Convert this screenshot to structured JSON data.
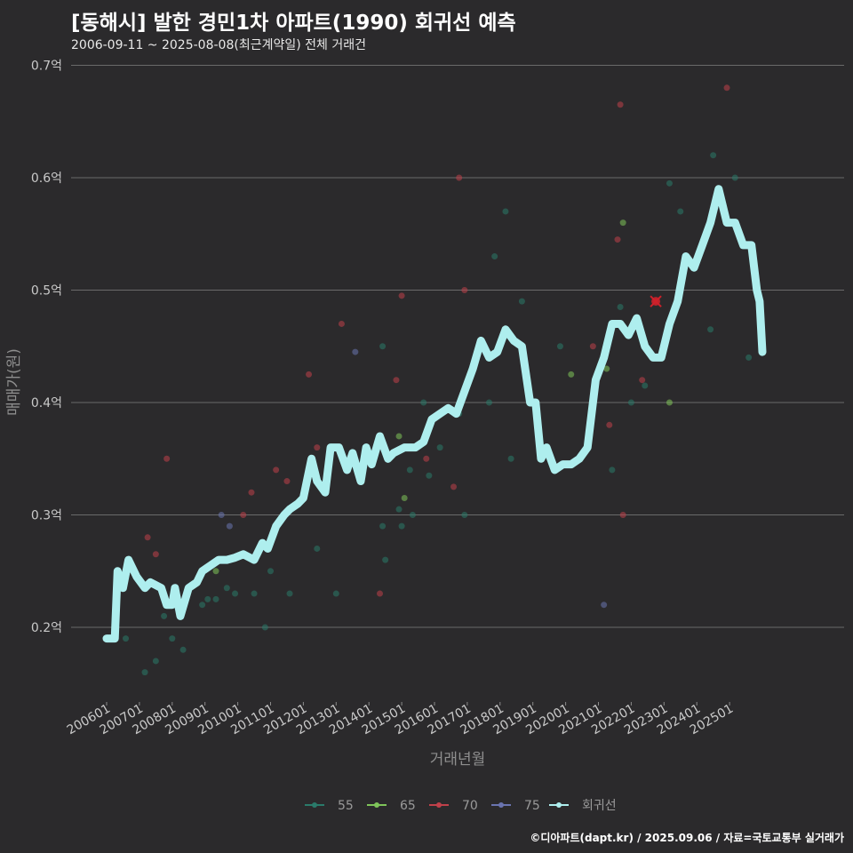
{
  "title": "[동해시] 발한 경민1차 아파트(1990) 회귀선 예측",
  "subtitle": "2006-09-11 ~ 2025-08-08(최근계약일) 전체 거래건",
  "caption": "©디아파트(dapt.kr) / 2025.09.06 / 자료=국토교통부 실거래가",
  "colors": {
    "background": "#2b2a2c",
    "grid": "#6a6a6a",
    "s55": "#2a7a6a",
    "s65": "#7fc45a",
    "s70": "#c0404a",
    "s75": "#6a74b0",
    "trend": "#aeeeee",
    "highlight": "#d0202a"
  },
  "chart_data": {
    "type": "scatter",
    "xlabel": "거래년월",
    "ylabel": "매매가(원)",
    "x_start": "2006-01",
    "x_end": "2025-12",
    "ylim": [
      0.135,
      0.71
    ],
    "y_ticks": [
      {
        "value": 0.2,
        "label": "0.2억"
      },
      {
        "value": 0.3,
        "label": "0.3억"
      },
      {
        "value": 0.4,
        "label": "0.4억"
      },
      {
        "value": 0.5,
        "label": "0.5억"
      },
      {
        "value": 0.6,
        "label": "0.6억"
      },
      {
        "value": 0.7,
        "label": "0.7억"
      }
    ],
    "x_ticks": [
      "200601",
      "200701",
      "200801",
      "200901",
      "201001",
      "201101",
      "201201",
      "201301",
      "201401",
      "201501",
      "201601",
      "201701",
      "201801",
      "201901",
      "202001",
      "202101",
      "202201",
      "202301",
      "202401",
      "202501"
    ],
    "legend": [
      {
        "name": "55",
        "color": "#2a7a6a"
      },
      {
        "name": "65",
        "color": "#7fc45a"
      },
      {
        "name": "70",
        "color": "#c0404a"
      },
      {
        "name": "75",
        "color": "#6a74b0"
      },
      {
        "name": "회귀선",
        "color": "#aeeeee"
      }
    ],
    "legend_position": "bottom",
    "grid": true,
    "series": [
      {
        "name": "55",
        "points": [
          [
            "2006-08",
            0.19
          ],
          [
            "2007-03",
            0.16
          ],
          [
            "2007-07",
            0.17
          ],
          [
            "2007-10",
            0.21
          ],
          [
            "2008-01",
            0.19
          ],
          [
            "2008-05",
            0.18
          ],
          [
            "2008-12",
            0.22
          ],
          [
            "2009-02",
            0.225
          ],
          [
            "2009-05",
            0.225
          ],
          [
            "2009-09",
            0.235
          ],
          [
            "2009-12",
            0.23
          ],
          [
            "2010-07",
            0.23
          ],
          [
            "2010-11",
            0.2
          ],
          [
            "2011-01",
            0.25
          ],
          [
            "2011-08",
            0.23
          ],
          [
            "2012-06",
            0.27
          ],
          [
            "2013-01",
            0.23
          ],
          [
            "2014-06",
            0.45
          ],
          [
            "2014-07",
            0.26
          ],
          [
            "2014-06",
            0.29
          ],
          [
            "2014-12",
            0.305
          ],
          [
            "2015-01",
            0.29
          ],
          [
            "2015-04",
            0.34
          ],
          [
            "2015-05",
            0.3
          ],
          [
            "2015-09",
            0.4
          ],
          [
            "2015-11",
            0.335
          ],
          [
            "2016-03",
            0.36
          ],
          [
            "2016-10",
            0.39
          ],
          [
            "2016-12",
            0.3
          ],
          [
            "2017-09",
            0.4
          ],
          [
            "2017-11",
            0.53
          ],
          [
            "2018-03",
            0.57
          ],
          [
            "2018-05",
            0.35
          ],
          [
            "2018-09",
            0.49
          ],
          [
            "2019-11",
            0.45
          ],
          [
            "2021-06",
            0.34
          ],
          [
            "2021-09",
            0.485
          ],
          [
            "2022-01",
            0.4
          ],
          [
            "2022-06",
            0.415
          ],
          [
            "2023-03",
            0.595
          ],
          [
            "2023-07",
            0.57
          ],
          [
            "2024-06",
            0.465
          ],
          [
            "2024-07",
            0.62
          ],
          [
            "2025-03",
            0.6
          ],
          [
            "2025-08",
            0.44
          ]
        ]
      },
      {
        "name": "65",
        "points": [
          [
            "2009-05",
            0.25
          ],
          [
            "2014-12",
            0.37
          ],
          [
            "2015-02",
            0.315
          ],
          [
            "2020-03",
            0.425
          ],
          [
            "2021-04",
            0.43
          ],
          [
            "2021-10",
            0.56
          ],
          [
            "2023-03",
            0.4
          ]
        ]
      },
      {
        "name": "70",
        "points": [
          [
            "2007-04",
            0.28
          ],
          [
            "2007-07",
            0.265
          ],
          [
            "2007-11",
            0.35
          ],
          [
            "2010-03",
            0.3
          ],
          [
            "2010-06",
            0.32
          ],
          [
            "2011-03",
            0.34
          ],
          [
            "2011-07",
            0.33
          ],
          [
            "2012-03",
            0.425
          ],
          [
            "2012-06",
            0.36
          ],
          [
            "2013-03",
            0.47
          ],
          [
            "2014-05",
            0.23
          ],
          [
            "2014-11",
            0.42
          ],
          [
            "2015-01",
            0.495
          ],
          [
            "2015-10",
            0.35
          ],
          [
            "2016-08",
            0.325
          ],
          [
            "2016-10",
            0.6
          ],
          [
            "2016-12",
            0.5
          ],
          [
            "2020-11",
            0.45
          ],
          [
            "2021-05",
            0.38
          ],
          [
            "2021-08",
            0.545
          ],
          [
            "2021-09",
            0.665
          ],
          [
            "2022-05",
            0.42
          ],
          [
            "2022-10",
            0.49
          ],
          [
            "2024-12",
            0.68
          ],
          [
            "2021-10",
            0.3
          ]
        ]
      },
      {
        "name": "75",
        "points": [
          [
            "2009-07",
            0.3
          ],
          [
            "2009-10",
            0.29
          ],
          [
            "2013-08",
            0.445
          ],
          [
            "2021-03",
            0.22
          ]
        ]
      }
    ],
    "highlight_point": [
      "2022-10",
      0.49
    ],
    "trend_line": [
      [
        "2006-01",
        0.19
      ],
      [
        "2006-04",
        0.19
      ],
      [
        "2006-05",
        0.25
      ],
      [
        "2006-07",
        0.235
      ],
      [
        "2006-09",
        0.26
      ],
      [
        "2006-12",
        0.245
      ],
      [
        "2007-03",
        0.235
      ],
      [
        "2007-05",
        0.24
      ],
      [
        "2007-09",
        0.235
      ],
      [
        "2007-11",
        0.22
      ],
      [
        "2008-01",
        0.22
      ],
      [
        "2008-02",
        0.235
      ],
      [
        "2008-04",
        0.21
      ],
      [
        "2008-07",
        0.235
      ],
      [
        "2008-10",
        0.24
      ],
      [
        "2008-12",
        0.25
      ],
      [
        "2009-03",
        0.255
      ],
      [
        "2009-06",
        0.26
      ],
      [
        "2009-09",
        0.26
      ],
      [
        "2009-12",
        0.262
      ],
      [
        "2010-03",
        0.265
      ],
      [
        "2010-07",
        0.26
      ],
      [
        "2010-10",
        0.275
      ],
      [
        "2010-12",
        0.27
      ],
      [
        "2011-03",
        0.29
      ],
      [
        "2011-06",
        0.3
      ],
      [
        "2011-08",
        0.305
      ],
      [
        "2011-11",
        0.31
      ],
      [
        "2012-01",
        0.315
      ],
      [
        "2012-04",
        0.35
      ],
      [
        "2012-06",
        0.33
      ],
      [
        "2012-09",
        0.32
      ],
      [
        "2012-11",
        0.36
      ],
      [
        "2013-02",
        0.36
      ],
      [
        "2013-05",
        0.34
      ],
      [
        "2013-07",
        0.355
      ],
      [
        "2013-10",
        0.33
      ],
      [
        "2013-12",
        0.36
      ],
      [
        "2014-02",
        0.345
      ],
      [
        "2014-05",
        0.37
      ],
      [
        "2014-08",
        0.35
      ],
      [
        "2014-10",
        0.355
      ],
      [
        "2015-02",
        0.36
      ],
      [
        "2015-06",
        0.36
      ],
      [
        "2015-09",
        0.365
      ],
      [
        "2015-12",
        0.385
      ],
      [
        "2016-03",
        0.39
      ],
      [
        "2016-06",
        0.395
      ],
      [
        "2016-09",
        0.39
      ],
      [
        "2016-12",
        0.41
      ],
      [
        "2017-03",
        0.43
      ],
      [
        "2017-06",
        0.455
      ],
      [
        "2017-09",
        0.44
      ],
      [
        "2017-12",
        0.445
      ],
      [
        "2018-03",
        0.465
      ],
      [
        "2018-06",
        0.455
      ],
      [
        "2018-09",
        0.45
      ],
      [
        "2018-12",
        0.4
      ],
      [
        "2019-02",
        0.4
      ],
      [
        "2019-04",
        0.35
      ],
      [
        "2019-06",
        0.36
      ],
      [
        "2019-09",
        0.34
      ],
      [
        "2019-12",
        0.345
      ],
      [
        "2020-03",
        0.345
      ],
      [
        "2020-06",
        0.35
      ],
      [
        "2020-09",
        0.36
      ],
      [
        "2020-12",
        0.42
      ],
      [
        "2021-03",
        0.44
      ],
      [
        "2021-06",
        0.47
      ],
      [
        "2021-09",
        0.47
      ],
      [
        "2021-12",
        0.46
      ],
      [
        "2022-03",
        0.475
      ],
      [
        "2022-06",
        0.45
      ],
      [
        "2022-09",
        0.44
      ],
      [
        "2022-12",
        0.44
      ],
      [
        "2023-03",
        0.47
      ],
      [
        "2023-06",
        0.49
      ],
      [
        "2023-09",
        0.53
      ],
      [
        "2023-12",
        0.52
      ],
      [
        "2024-03",
        0.54
      ],
      [
        "2024-06",
        0.56
      ],
      [
        "2024-09",
        0.59
      ],
      [
        "2024-12",
        0.56
      ],
      [
        "2025-03",
        0.56
      ],
      [
        "2025-06",
        0.54
      ],
      [
        "2025-09",
        0.54
      ],
      [
        "2025-11",
        0.5
      ],
      [
        "2025-12",
        0.49
      ],
      [
        "2026-01",
        0.445
      ]
    ]
  }
}
